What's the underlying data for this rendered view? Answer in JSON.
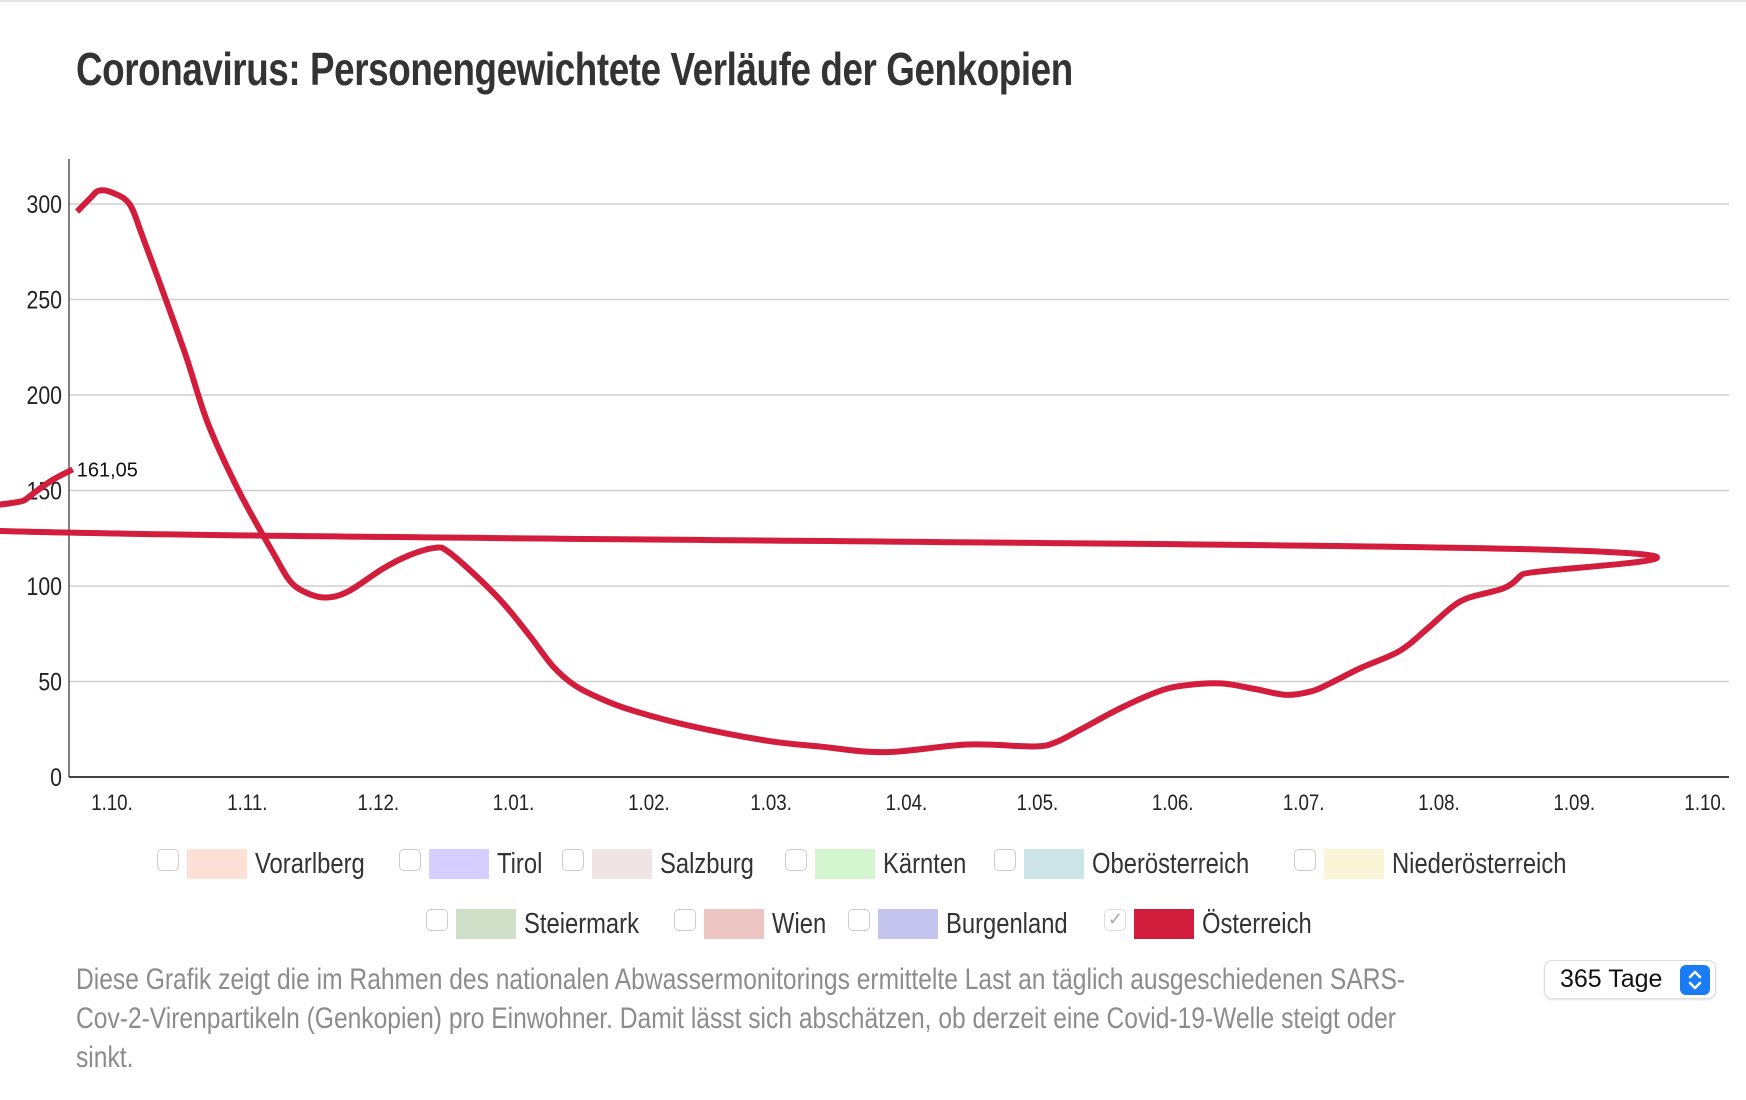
{
  "title": "Coronavirus: Personengewichtete Verläufe der Genkopien",
  "chart_data": {
    "type": "line",
    "title": "Coronavirus: Personengewichtete Verläufe der Genkopien",
    "xlabel": "",
    "ylabel": "",
    "ylim": [
      0,
      320
    ],
    "yticks": [
      0,
      50,
      100,
      150,
      200,
      250,
      300
    ],
    "xticks": [
      "1.10.",
      "1.11.",
      "1.12.",
      "1.01.",
      "1.02.",
      "1.03.",
      "1.04.",
      "1.05.",
      "1.06.",
      "1.07.",
      "1.08.",
      "1.09.",
      "1.10."
    ],
    "grid": true,
    "series": [
      {
        "name": "Österreich",
        "color": "#d21e3c",
        "end_label": "161,05",
        "points": [
          [
            "23.09.",
            296
          ],
          [
            "26.09.",
            303
          ],
          [
            "28.09.",
            307
          ],
          [
            "01.10.",
            306
          ],
          [
            "05.10.",
            300
          ],
          [
            "08.10.",
            283
          ],
          [
            "13.10.",
            252
          ],
          [
            "18.10.",
            220
          ],
          [
            "23.10.",
            185
          ],
          [
            "30.10.",
            150
          ],
          [
            "07.11.",
            117
          ],
          [
            "11.11.",
            102
          ],
          [
            "15.11.",
            96
          ],
          [
            "19.11.",
            94
          ],
          [
            "24.11.",
            97
          ],
          [
            "02.12.",
            109
          ],
          [
            "08.12.",
            116
          ],
          [
            "14.12.",
            120
          ],
          [
            "17.12.",
            118
          ],
          [
            "24.12.",
            104
          ],
          [
            "30.12.",
            90
          ],
          [
            "05.01.",
            73
          ],
          [
            "10.01.",
            58
          ],
          [
            "15.01.",
            48
          ],
          [
            "21.01.",
            41
          ],
          [
            "28.01.",
            35
          ],
          [
            "10.02.",
            27
          ],
          [
            "28.02.",
            19
          ],
          [
            "12.03.",
            16
          ],
          [
            "27.03.",
            13
          ],
          [
            "15.04.",
            17
          ],
          [
            "30.04.",
            16
          ],
          [
            "05.05.",
            18
          ],
          [
            "11.05.",
            25
          ],
          [
            "20.05.",
            36
          ],
          [
            "29.05.",
            45
          ],
          [
            "04.06.",
            48
          ],
          [
            "12.06.",
            49
          ],
          [
            "20.06.",
            46
          ],
          [
            "27.06.",
            43
          ],
          [
            "03.07.",
            45
          ],
          [
            "07.07.",
            49
          ],
          [
            "14.07.",
            57
          ],
          [
            "23.07.",
            66
          ],
          [
            "29.07.",
            77
          ],
          [
            "04.08.",
            89
          ],
          [
            "08.08.",
            94
          ],
          [
            "16.08.",
            99
          ],
          [
            "20.08.",
            106
          ],
          [
            "26.08.",
            119
          ],
          [
            "02.09.",
            129
          ],
          [
            "11.09.",
            145
          ],
          [
            "17.09.",
            155
          ],
          [
            "22.09.",
            161.05
          ]
        ]
      }
    ]
  },
  "legend": [
    {
      "label": "Vorarlberg",
      "color": "#fde0d6",
      "checked": false
    },
    {
      "label": "Tirol",
      "color": "#d6ceff",
      "checked": false
    },
    {
      "label": "Salzburg",
      "color": "#f1e4e4",
      "checked": false
    },
    {
      "label": "Kärnten",
      "color": "#d4f7d0",
      "checked": false
    },
    {
      "label": "Oberösterreich",
      "color": "#cce3e8",
      "checked": false
    },
    {
      "label": "Niederösterreich",
      "color": "#faf5d6",
      "checked": false
    },
    {
      "label": "Steiermark",
      "color": "#d0dfc8",
      "checked": false
    },
    {
      "label": "Wien",
      "color": "#ecc5c3",
      "checked": false
    },
    {
      "label": "Burgenland",
      "color": "#c5c4ef",
      "checked": false
    },
    {
      "label": "Österreich",
      "color": "#d21e3c",
      "checked": true
    }
  ],
  "description": "Diese Grafik zeigt die im Rahmen des nationalen Abwassermonitorings ermittelte Last an täglich ausgeschiedenen SARS-Cov-2-Virenpartikeln (Genkopien) pro Einwohner. Damit lässt sich abschätzen, ob derzeit eine Covid-19-Welle steigt oder sinkt.",
  "range_select": {
    "value": "365 Tage"
  }
}
